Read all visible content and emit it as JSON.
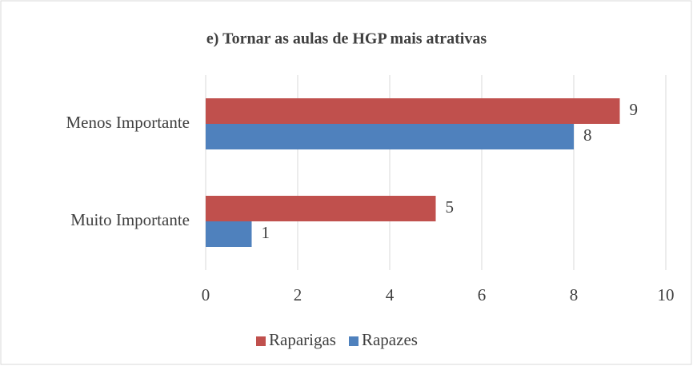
{
  "chart_data": {
    "type": "barh",
    "title": "e) Tornar as aulas de HGP mais atrativas",
    "categories": [
      "Menos Importante",
      "Muito Importante"
    ],
    "series": [
      {
        "name": "Raparigas",
        "color": "#c0504d",
        "values": [
          9,
          5
        ]
      },
      {
        "name": "Rapazes",
        "color": "#4f81bd",
        "values": [
          8,
          1
        ]
      }
    ],
    "xlim": [
      0,
      10
    ],
    "xticks": [
      0,
      2,
      4,
      6,
      8,
      10
    ],
    "grid": true,
    "legend": "bottom"
  }
}
